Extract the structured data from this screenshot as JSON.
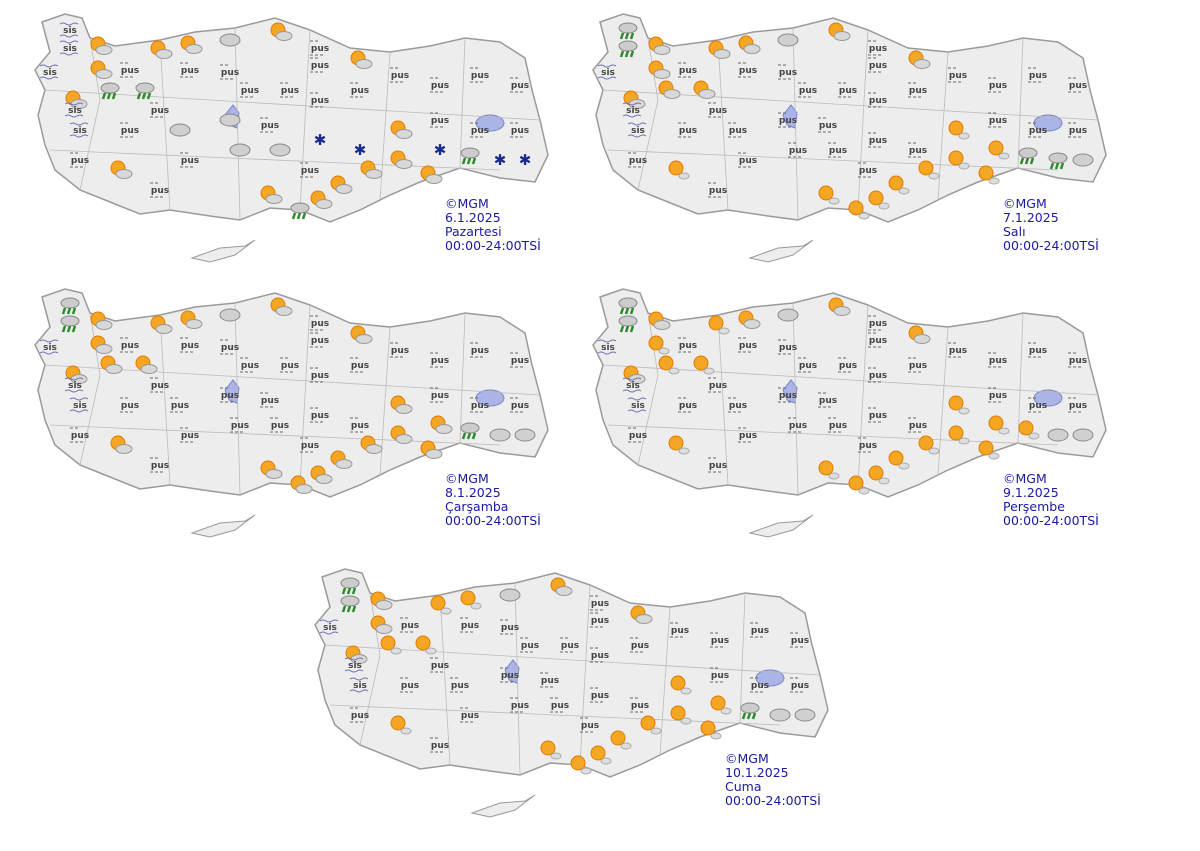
{
  "colors": {
    "land": "#ededed",
    "border": "#9a9a9a",
    "lake": "#aab4e6",
    "label": "#1a1aa0",
    "sun": "#f5a623",
    "snow": "#1a2a8a",
    "rain": "#2e8b2e"
  },
  "legend_codes": {
    "P": "partly-cloudy-sun",
    "F": "fog",
    "H": "haze",
    "C": "cloudy",
    "R": "rain",
    "S": "snow",
    "M": "mostly-sunny"
  },
  "fog_text": "sis",
  "haze_text": "pus",
  "maps": [
    {
      "copyright": "©MGM",
      "date": "6.1.2025",
      "day": "Pazartesi",
      "period": "00:00-24:00TSİ",
      "conditions": "FFPFPPPHPRRCPHHFHHHHFHCCHHPHHHHHHHCCSSPHHHHPHHPPPPPPRSRSS"
    },
    {
      "copyright": "©MGM",
      "date": "7.1.2025",
      "day": "Salı",
      "period": "00:00-24:00TSİ",
      "conditions": "RRPFPPPHPPPCPHHFHHHHFHHHHHPHHHHHHHHHHHMHHHHMHHMMMMMMMMRRC"
    },
    {
      "copyright": "©MGM",
      "date": "8.1.2025",
      "day": "Çarşamba",
      "period": "00:00-24:00TSİ",
      "conditions": "RRPFPPPHPPPCPHHFHHHHFHHHHHPHHHHHHHHHHHPHHHHPHHPPPPPPPPRCC"
    },
    {
      "copyright": "©MGM",
      "date": "9.1.2025",
      "day": "Perşembe",
      "period": "00:00-24:00TSİ",
      "conditions": "RRPFMMPHPMMCPHHFHHHHFHHHHHPHHHHHHHHHHHMHHHHMHHMMMMMMMMMCC"
    },
    {
      "copyright": "©MGM",
      "date": "10.1.2025",
      "day": "Cuma",
      "period": "00:00-24:00TSİ",
      "conditions": "RRPFPMMHPMMCPHHFHHHHFHHHHHPHHHHHHHHHHHMHHHHMHHMMMMMMMMRCC"
    }
  ]
}
